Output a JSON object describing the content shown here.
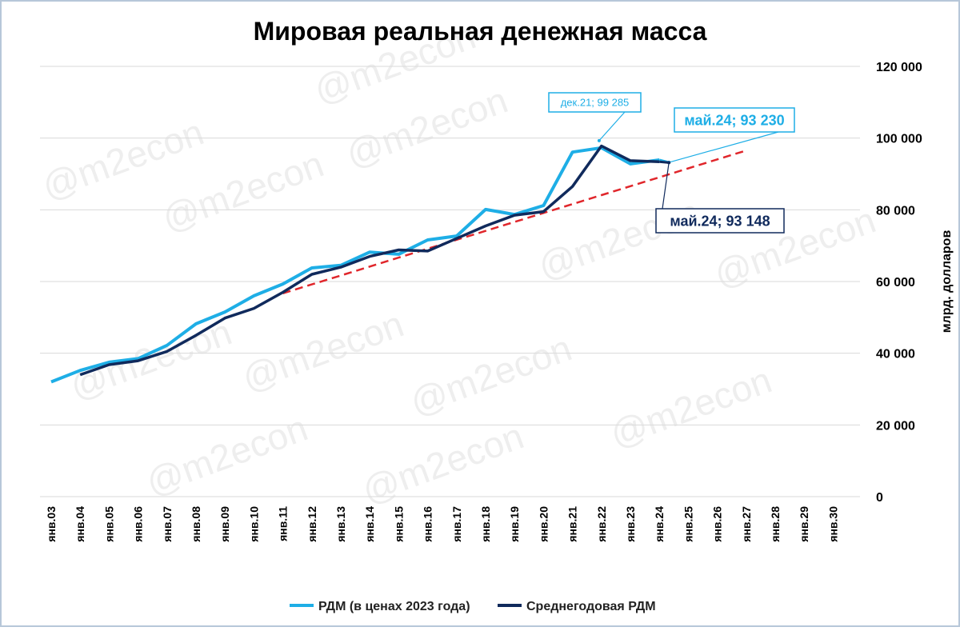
{
  "chart_data": {
    "type": "line",
    "title": "Мировая реальная денежная масса",
    "y_label": "млрд. долларов",
    "watermark": "@m2econ",
    "categories": [
      "янв.03",
      "янв.04",
      "янв.05",
      "янв.06",
      "янв.07",
      "янв.08",
      "янв.09",
      "янв.10",
      "янв.11",
      "янв.12",
      "янв.13",
      "янв.14",
      "янв.15",
      "янв.16",
      "янв.17",
      "янв.18",
      "янв.19",
      "янв.20",
      "янв.21",
      "янв.22",
      "янв.23",
      "янв.24",
      "янв.25",
      "янв.26",
      "янв.27",
      "янв.28",
      "янв.29",
      "янв.30"
    ],
    "ylim": [
      0,
      120000
    ],
    "yticks": [
      0,
      {
        "value": 20000,
        "label": "20 000"
      },
      {
        "value": 40000,
        "label": "40 000"
      },
      {
        "value": 60000,
        "label": "60 000"
      },
      {
        "value": 80000,
        "label": "80 000"
      },
      {
        "value": 100000,
        "label": "100 000"
      },
      {
        "value": 120000,
        "label": "120 000"
      }
    ],
    "grid": true,
    "y_axis_side": "right",
    "legend_position": "bottom",
    "series": [
      {
        "name": "РДМ (в ценах 2023 года)",
        "color": "#1eaee6",
        "values": [
          32000,
          35200,
          37500,
          38500,
          42200,
          48200,
          51500,
          56000,
          59300,
          63800,
          64500,
          68200,
          67600,
          71600,
          72700,
          80100,
          78700,
          81200,
          96100,
          97300,
          92800,
          93900,
          null,
          null,
          null,
          null,
          null,
          null
        ],
        "annotations": [
          {
            "label": "дек.21; 99 285",
            "value": 99285
          },
          {
            "label": "май.24; 93 230",
            "value": 93230
          }
        ]
      },
      {
        "name": "Среднегодовая РДМ",
        "color": "#102a5c",
        "values": [
          null,
          34000,
          36800,
          37900,
          40500,
          45000,
          49800,
          52500,
          57000,
          62000,
          64000,
          67000,
          68800,
          68500,
          72000,
          75500,
          78500,
          79500,
          86500,
          97800,
          93700,
          93400,
          null,
          null,
          null,
          null,
          null,
          null
        ],
        "annotations": [
          {
            "label": "май.24; 93 148",
            "value": 93148
          }
        ]
      }
    ],
    "trend": {
      "color": "#e0262b",
      "values": [
        null,
        null,
        null,
        null,
        null,
        null,
        null,
        null,
        56700,
        59190,
        61680,
        64170,
        66660,
        69150,
        71640,
        74130,
        76620,
        79110,
        81600,
        84090,
        86580,
        89070,
        91560,
        94050,
        96540,
        null,
        null,
        null
      ]
    }
  }
}
